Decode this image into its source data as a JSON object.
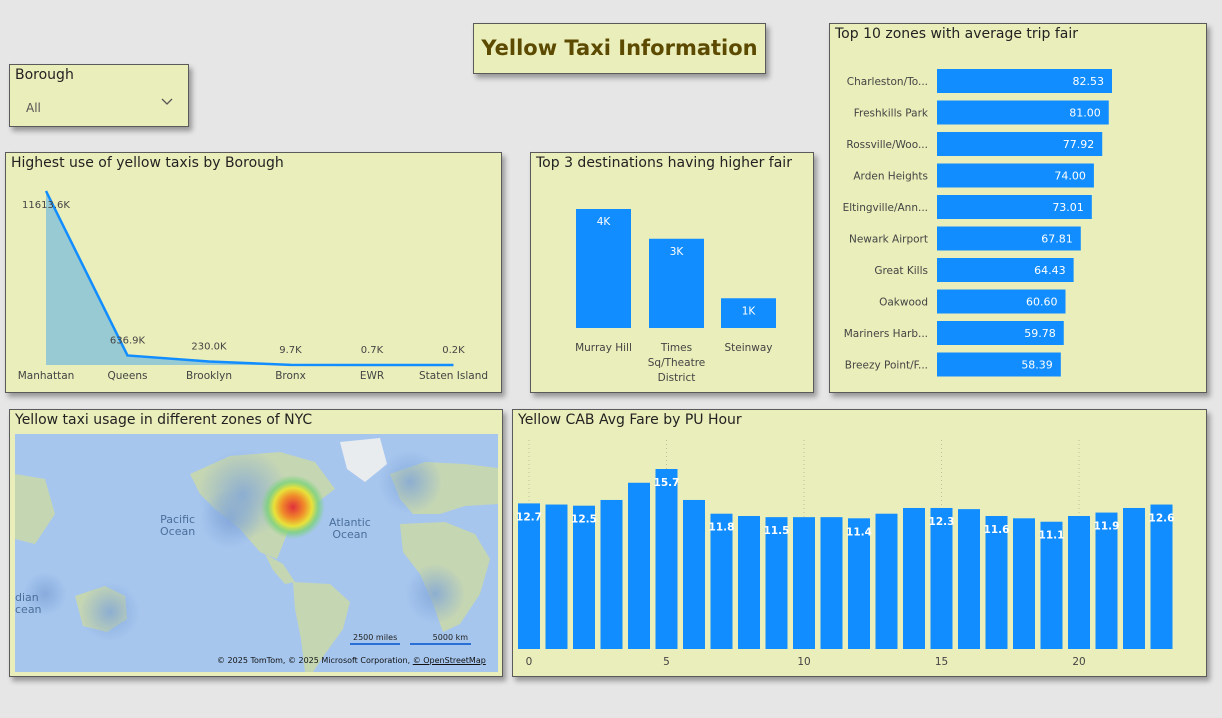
{
  "title": "Yellow Taxi Information",
  "slicer": {
    "label": "Borough",
    "value": "All"
  },
  "colors": {
    "panel_bg": "#eaeeba",
    "bar": "#118dff",
    "area": "#8fc5d6",
    "title": "#5c4a00"
  },
  "panels": {
    "line": "Highest use of yellow taxis by Borough",
    "top3": "Top 3 destinations having higher fair",
    "top10": "Top 10 zones with average trip fair",
    "map": "Yellow taxi usage in different zones of NYC",
    "hour": "Yellow CAB Avg Fare by PU Hour"
  },
  "map": {
    "labels": {
      "pacific": "Pacific\nOcean",
      "atlantic": "Atlantic\nOcean",
      "indian": "dian\ncean"
    },
    "scale_miles": "2500 miles",
    "scale_km": "5000 km",
    "attribution_main": "© 2025 TomTom, © 2025 Microsoft Corporation, ",
    "attribution_link": "© OpenStreetMap"
  },
  "chart_data": [
    {
      "type": "area",
      "title": "Highest use of yellow taxis by Borough",
      "categories": [
        "Manhattan",
        "Queens",
        "Brooklyn",
        "Bronx",
        "EWR",
        "Staten Island"
      ],
      "values": [
        11613.6,
        636.9,
        230.0,
        9.7,
        0.7,
        0.2
      ],
      "data_labels": [
        "11613.6K",
        "636.9K",
        "230.0K",
        "9.7K",
        "0.7K",
        "0.2K"
      ],
      "ylim": [
        0,
        11613.6
      ]
    },
    {
      "type": "bar",
      "title": "Top 3 destinations having higher fair",
      "categories": [
        "Murray Hill",
        "Times Sq/Theatre District",
        "Steinway"
      ],
      "values": [
        4,
        3,
        1
      ],
      "data_labels": [
        "4K",
        "3K",
        "1K"
      ]
    },
    {
      "type": "bar",
      "orientation": "horizontal",
      "title": "Top 10 zones with average trip fair",
      "categories": [
        "Charleston/To...",
        "Freshkills Park",
        "Rossville/Woo...",
        "Arden Heights",
        "Eltingville/Ann...",
        "Newark Airport",
        "Great Kills",
        "Oakwood",
        "Mariners Harb...",
        "Breezy Point/F..."
      ],
      "values": [
        82.53,
        81.0,
        77.92,
        74.0,
        73.01,
        67.81,
        64.43,
        60.6,
        59.78,
        58.39
      ],
      "data_labels": [
        "82.53",
        "81.00",
        "77.92",
        "74.00",
        "73.01",
        "67.81",
        "64.43",
        "60.60",
        "59.78",
        "58.39"
      ]
    },
    {
      "type": "bar",
      "title": "Yellow CAB Avg Fare by PU Hour",
      "x": [
        0,
        1,
        2,
        3,
        4,
        5,
        6,
        7,
        8,
        9,
        10,
        11,
        12,
        13,
        14,
        15,
        16,
        17,
        18,
        19,
        20,
        21,
        22,
        23
      ],
      "values": [
        12.7,
        12.6,
        12.5,
        13.0,
        14.5,
        15.7,
        13.0,
        11.8,
        11.6,
        11.5,
        11.5,
        11.5,
        11.4,
        11.8,
        12.3,
        12.3,
        12.2,
        11.6,
        11.4,
        11.1,
        11.6,
        11.9,
        12.3,
        12.6
      ],
      "data_labels": [
        "12.7",
        "",
        "12.5",
        "",
        "",
        "15.7",
        "",
        "11.8",
        "",
        "11.5",
        "",
        "",
        "11.4",
        "",
        "",
        "12.3",
        "",
        "11.6",
        "",
        "11.1",
        "",
        "11.9",
        "",
        "12.6"
      ],
      "xticks": [
        0,
        5,
        10,
        15,
        20
      ],
      "ylim": [
        0,
        15.7
      ],
      "grid": "vertical dotted"
    }
  ]
}
